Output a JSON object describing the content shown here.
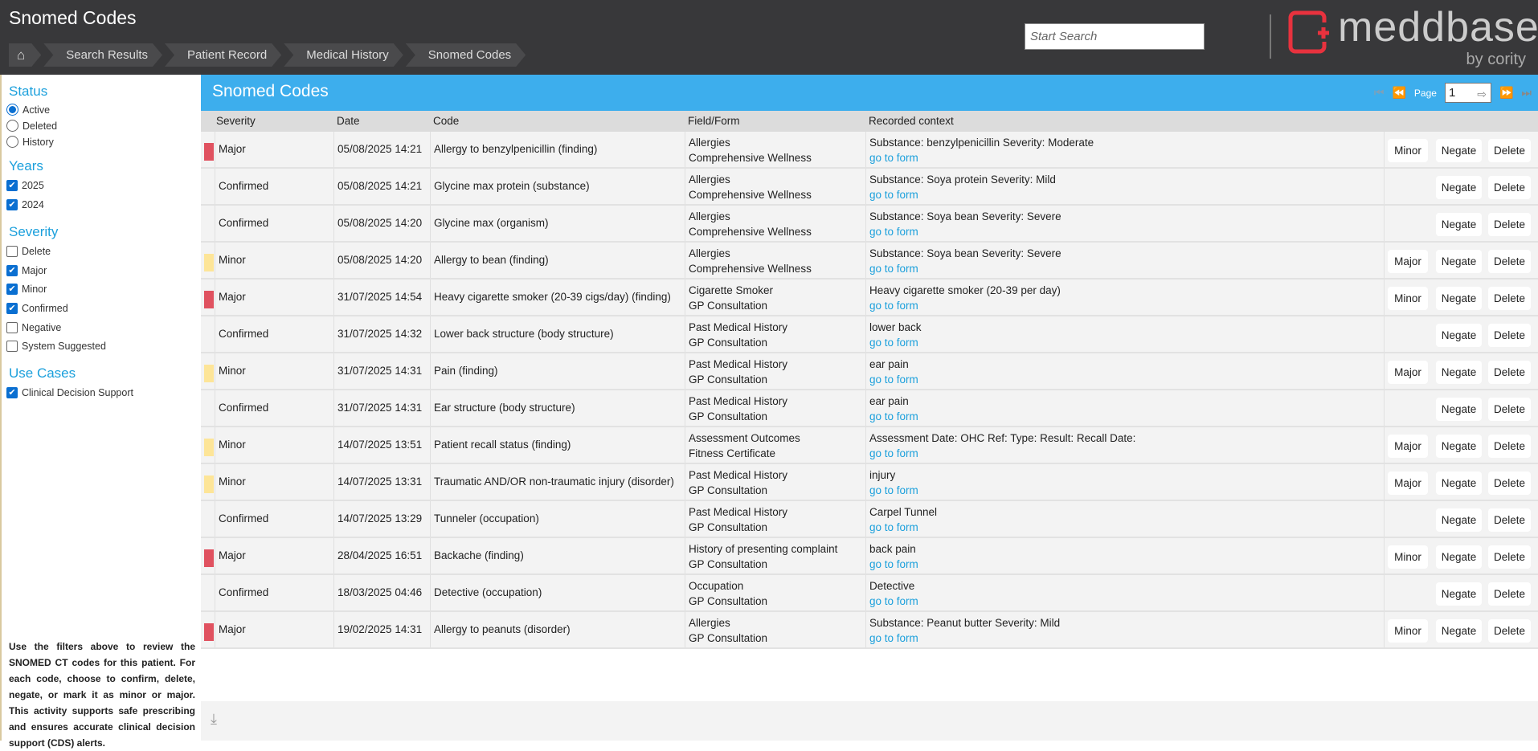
{
  "header": {
    "title": "Snomed Codes",
    "breadcrumbs": [
      "Search Results",
      "Patient Record",
      "Medical History",
      "Snomed Codes"
    ],
    "search_placeholder": "Start Search",
    "logo": {
      "name": "meddbase",
      "by": "by cority"
    }
  },
  "sidebar": {
    "status": {
      "title": "Status",
      "options": [
        {
          "label": "Active",
          "selected": true
        },
        {
          "label": "Deleted",
          "selected": false
        },
        {
          "label": "History",
          "selected": false
        }
      ]
    },
    "years": {
      "title": "Years",
      "options": [
        {
          "label": "2025",
          "checked": true
        },
        {
          "label": "2024",
          "checked": true
        }
      ]
    },
    "severity": {
      "title": "Severity",
      "options": [
        {
          "label": "Delete",
          "checked": false
        },
        {
          "label": "Major",
          "checked": true
        },
        {
          "label": "Minor",
          "checked": true
        },
        {
          "label": "Confirmed",
          "checked": true
        },
        {
          "label": "Negative",
          "checked": false
        },
        {
          "label": "System Suggested",
          "checked": false
        }
      ]
    },
    "use_cases": {
      "title": "Use Cases",
      "options": [
        {
          "label": "Clinical Decision Support",
          "checked": true
        }
      ]
    },
    "help": "Use the filters above to review the SNOMED CT codes for this patient. For each code, choose to confirm, delete, negate, or mark it as minor or major. This activity supports safe prescribing and ensures accurate clinical decision support (CDS) alerts."
  },
  "main": {
    "title": "Snomed Codes",
    "pager": {
      "label": "Page",
      "value": "1"
    },
    "columns": [
      "Severity",
      "Date",
      "Code",
      "Field/Form",
      "Recorded context"
    ],
    "link_label": "go to form",
    "negate_label": "Negate",
    "delete_label": "Delete",
    "colors": {
      "Major": "#e05260",
      "Minor": "#fde598",
      "accent": "#3daeed"
    },
    "rows": [
      {
        "severity": "Major",
        "date": "05/08/2025 14:21",
        "code": "Allergy to benzylpenicillin (finding)",
        "field": "Allergies",
        "form": "Comprehensive Wellness",
        "context": "Substance: benzylpenicillin Severity: Moderate",
        "toggle": "Minor"
      },
      {
        "severity": "Confirmed",
        "date": "05/08/2025 14:21",
        "code": "Glycine max protein (substance)",
        "field": "Allergies",
        "form": "Comprehensive Wellness",
        "context": "Substance: Soya protein Severity: Mild",
        "toggle": ""
      },
      {
        "severity": "Confirmed",
        "date": "05/08/2025 14:20",
        "code": "Glycine max (organism)",
        "field": "Allergies",
        "form": "Comprehensive Wellness",
        "context": "Substance: Soya bean Severity: Severe",
        "toggle": ""
      },
      {
        "severity": "Minor",
        "date": "05/08/2025 14:20",
        "code": "Allergy to bean (finding)",
        "field": "Allergies",
        "form": "Comprehensive Wellness",
        "context": "Substance: Soya bean Severity: Severe",
        "toggle": "Major"
      },
      {
        "severity": "Major",
        "date": "31/07/2025 14:54",
        "code": "Heavy cigarette smoker (20-39 cigs/day) (finding)",
        "field": "Cigarette Smoker",
        "form": "GP Consultation",
        "context": "Heavy cigarette smoker (20-39 per day)",
        "toggle": "Minor"
      },
      {
        "severity": "Confirmed",
        "date": "31/07/2025 14:32",
        "code": "Lower back structure (body structure)",
        "field": "Past Medical History",
        "form": "GP Consultation",
        "context": "lower back",
        "toggle": ""
      },
      {
        "severity": "Minor",
        "date": "31/07/2025 14:31",
        "code": "Pain (finding)",
        "field": "Past Medical History",
        "form": "GP Consultation",
        "context": "ear pain",
        "toggle": "Major"
      },
      {
        "severity": "Confirmed",
        "date": "31/07/2025 14:31",
        "code": "Ear structure (body structure)",
        "field": "Past Medical History",
        "form": "GP Consultation",
        "context": "ear pain",
        "toggle": ""
      },
      {
        "severity": "Minor",
        "date": "14/07/2025 13:51",
        "code": "Patient recall status (finding)",
        "field": "Assessment Outcomes",
        "form": "Fitness Certificate",
        "context": "Assessment Date: OHC Ref: Type: Result: Recall Date:",
        "toggle": "Major"
      },
      {
        "severity": "Minor",
        "date": "14/07/2025 13:31",
        "code": "Traumatic AND/OR non-traumatic injury (disorder)",
        "field": "Past Medical History",
        "form": "GP Consultation",
        "context": "injury",
        "toggle": "Major"
      },
      {
        "severity": "Confirmed",
        "date": "14/07/2025 13:29",
        "code": "Tunneler (occupation)",
        "field": "Past Medical History",
        "form": "GP Consultation",
        "context": "Carpel Tunnel",
        "toggle": ""
      },
      {
        "severity": "Major",
        "date": "28/04/2025 16:51",
        "code": "Backache (finding)",
        "field": "History of presenting complaint",
        "form": "GP Consultation",
        "context": "back pain",
        "toggle": "Minor"
      },
      {
        "severity": "Confirmed",
        "date": "18/03/2025 04:46",
        "code": "Detective (occupation)",
        "field": "Occupation",
        "form": "GP Consultation",
        "context": "Detective",
        "toggle": ""
      },
      {
        "severity": "Major",
        "date": "19/02/2025 14:31",
        "code": "Allergy to peanuts (disorder)",
        "field": "Allergies",
        "form": "GP Consultation",
        "context": "Substance: Peanut butter Severity: Mild",
        "toggle": "Minor"
      }
    ]
  }
}
